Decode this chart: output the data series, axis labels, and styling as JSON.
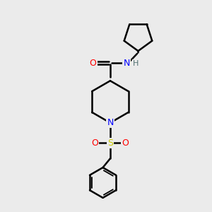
{
  "background_color": "#ebebeb",
  "bond_color": "#000000",
  "atom_colors": {
    "O": "#ff0000",
    "N_amide": "#0000ff",
    "N_pip": "#0000ff",
    "S": "#cccc00",
    "H": "#507070",
    "C": "#000000"
  },
  "figsize": [
    3.0,
    3.0
  ],
  "dpi": 100
}
